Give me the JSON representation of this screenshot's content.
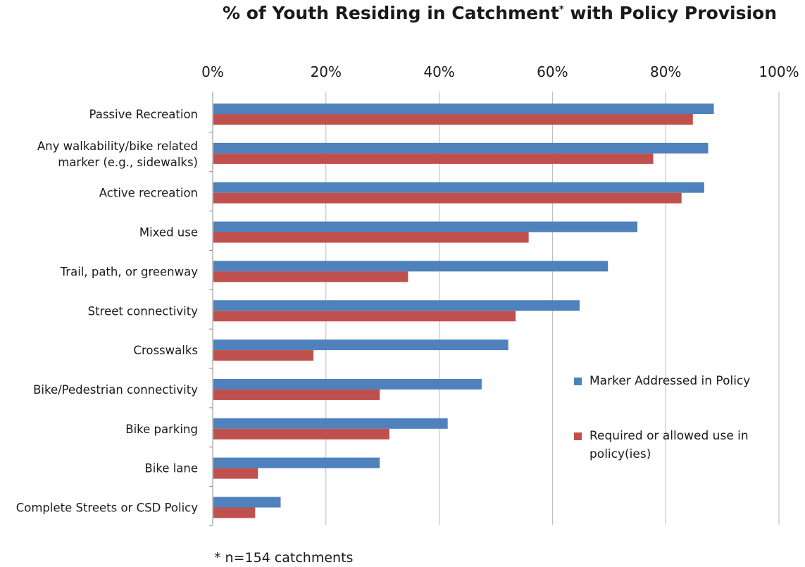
{
  "chart_data": {
    "type": "bar",
    "orientation": "horizontal",
    "title": "% of Youth Residing in Catchment",
    "title_marker": "*",
    "title_suffix": "with Policy Provision",
    "categories": [
      "Passive Recreation",
      "Any walkability/bike related marker (e.g., sidewalks)",
      "Active recreation",
      "Mixed use",
      "Trail, path, or greenway",
      "Street connectivity",
      "Crosswalks",
      "Bike/Pedestrian connectivity",
      "Bike parking",
      "Bike lane",
      "Complete Streets or CSD Policy"
    ],
    "category_lines": [
      [
        "Passive Recreation"
      ],
      [
        "Any walkability/bike related",
        "marker (e.g., sidewalks)"
      ],
      [
        "Active recreation"
      ],
      [
        "Mixed use"
      ],
      [
        "Trail, path, or greenway"
      ],
      [
        "Street connectivity"
      ],
      [
        "Crosswalks"
      ],
      [
        "Bike/Pedestrian connectivity"
      ],
      [
        "Bike parking"
      ],
      [
        "Bike lane"
      ],
      [
        "Complete Streets or CSD Policy"
      ]
    ],
    "series": [
      {
        "name": "Marker Addressed in Policy",
        "color": "#4F81BD",
        "values": [
          88.5,
          87.5,
          86.8,
          75.0,
          69.8,
          64.8,
          52.2,
          47.5,
          41.5,
          29.5,
          12.0
        ]
      },
      {
        "name": "Required or allowed use in policy(ies)",
        "color": "#C0504D",
        "values": [
          84.8,
          77.8,
          82.8,
          55.8,
          34.5,
          53.5,
          17.8,
          29.5,
          31.2,
          8.0,
          7.5
        ]
      }
    ],
    "xlim": [
      0,
      100
    ],
    "x_ticks": [
      0,
      20,
      40,
      60,
      80,
      100
    ],
    "x_tick_labels": [
      "0%",
      "20%",
      "40%",
      "60%",
      "80%",
      "100%"
    ],
    "x_axis_position": "top",
    "grid": true,
    "legend_position": "right"
  },
  "legend": {
    "items": [
      {
        "label": "Marker Addressed in Policy",
        "color": "#4F81BD"
      },
      {
        "label": "Required or allowed use in policy(ies)",
        "color": "#C0504D"
      }
    ]
  },
  "footnote": "* n=154 catchments"
}
